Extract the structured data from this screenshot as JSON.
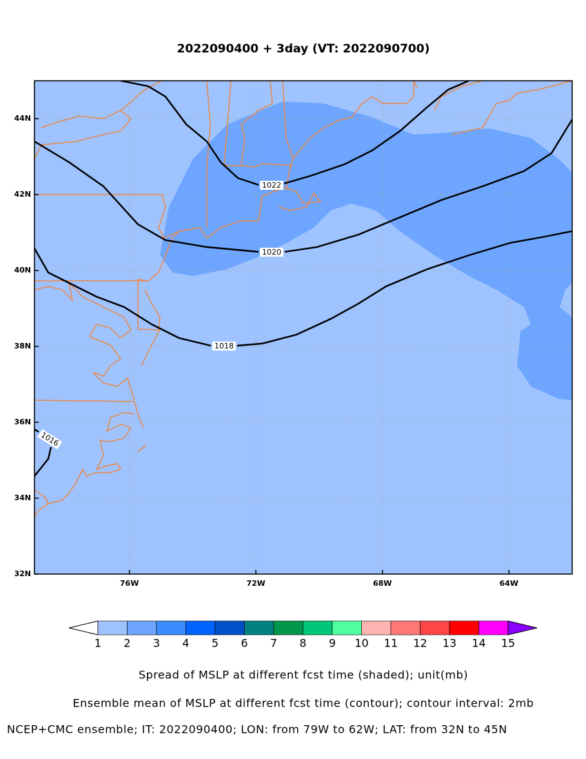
{
  "title": "2022090400 + 3day (VT: 2022090700)",
  "map": {
    "lon_range": [
      -79,
      -62
    ],
    "lat_range": [
      32,
      45
    ],
    "lon_ticks": [
      {
        "value": -76,
        "label": "76W"
      },
      {
        "value": -72,
        "label": "72W"
      },
      {
        "value": -68,
        "label": "68W"
      },
      {
        "value": -64,
        "label": "64W"
      }
    ],
    "lat_ticks": [
      {
        "value": 32,
        "label": "32N"
      },
      {
        "value": 34,
        "label": "34N"
      },
      {
        "value": 36,
        "label": "36N"
      },
      {
        "value": 38,
        "label": "38N"
      },
      {
        "value": 40,
        "label": "40N"
      },
      {
        "value": 42,
        "label": "42N"
      },
      {
        "value": 44,
        "label": "44N"
      }
    ],
    "contour_labels": [
      1022,
      1020,
      1018,
      1016
    ]
  },
  "colorbar": {
    "levels": [
      1,
      2,
      3,
      4,
      5,
      6,
      7,
      8,
      9,
      10,
      11,
      12,
      13,
      14,
      15
    ],
    "colors": [
      "#ffffff",
      "#9fc3ff",
      "#6ea6ff",
      "#3c8cff",
      "#0064ff",
      "#0050c8",
      "#008080",
      "#00964b",
      "#00c878",
      "#50ffa0",
      "#ffb4b4",
      "#ff7878",
      "#ff4646",
      "#ff0000",
      "#ff00ff",
      "#8c00ff"
    ]
  },
  "footer": [
    "Spread of MSLP at different fcst time (shaded); unit(mb)",
    "Ensemble mean of MSLP at different fcst time (contour); contour interval: 2mb",
    "NCEP+CMC ensemble; IT: 2022090400; LON: from 79W to 62W; LAT: from 32N to 45N"
  ]
}
